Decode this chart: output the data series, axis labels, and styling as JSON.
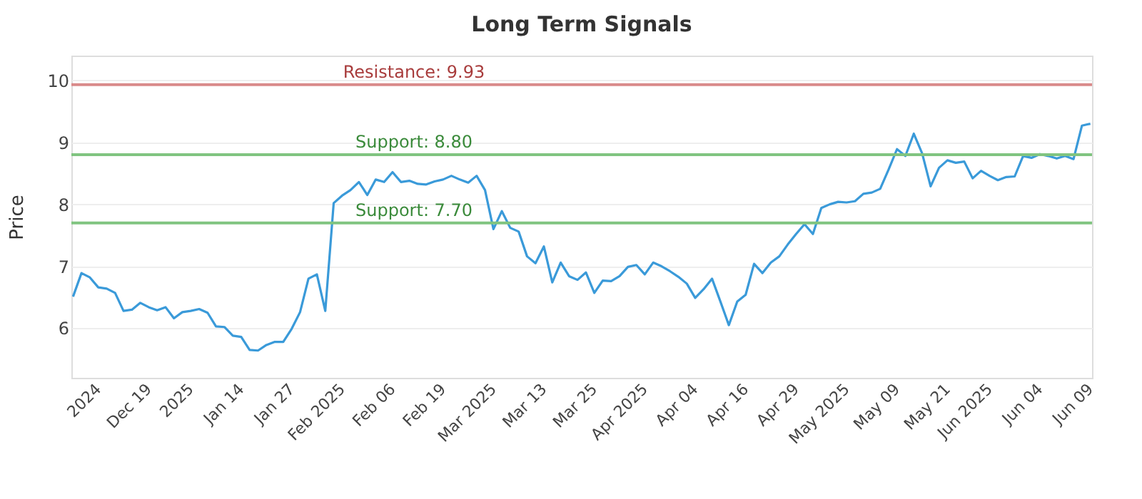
{
  "chart_data": {
    "type": "line",
    "title": "Long Term Signals",
    "ylabel": "Price",
    "categories": [
      null,
      null,
      null,
      "2024",
      null,
      null,
      null,
      null,
      null,
      "Dec 19",
      null,
      null,
      null,
      null,
      "2025",
      null,
      null,
      null,
      null,
      null,
      "Jan 14",
      null,
      null,
      null,
      null,
      null,
      "Jan 27",
      null,
      null,
      null,
      null,
      null,
      "Feb 2025",
      null,
      null,
      null,
      null,
      null,
      "Feb 06",
      null,
      null,
      null,
      null,
      null,
      "Feb 19",
      null,
      null,
      null,
      null,
      null,
      "Mar 2025",
      null,
      null,
      null,
      null,
      null,
      "Mar 13",
      null,
      null,
      null,
      null,
      null,
      "Mar 25",
      null,
      null,
      null,
      null,
      null,
      "Apr 2025",
      null,
      null,
      null,
      null,
      null,
      "Apr 04",
      null,
      null,
      null,
      null,
      null,
      "Apr 16",
      null,
      null,
      null,
      null,
      null,
      "Apr 29",
      null,
      null,
      null,
      null,
      null,
      "May 2025",
      null,
      null,
      null,
      null,
      null,
      "May 09",
      null,
      null,
      null,
      null,
      null,
      "May 21",
      null,
      null,
      null,
      null,
      "Jun 2025",
      null,
      null,
      null,
      null,
      null,
      "Jun 04",
      null,
      null,
      null,
      null,
      null,
      "Jun 09"
    ],
    "series": [
      {
        "color": "#3a9ad9",
        "values": [
          6.51,
          6.89,
          6.82,
          6.66,
          6.64,
          6.57,
          6.28,
          6.3,
          6.41,
          6.34,
          6.29,
          6.34,
          6.16,
          6.26,
          6.28,
          6.31,
          6.25,
          6.03,
          6.02,
          5.88,
          5.86,
          5.65,
          5.64,
          5.73,
          5.78,
          5.78,
          5.99,
          6.26,
          6.8,
          6.87,
          6.28,
          8.02,
          8.14,
          8.23,
          8.36,
          8.15,
          8.4,
          8.36,
          8.52,
          8.36,
          8.38,
          8.33,
          8.32,
          8.37,
          8.4,
          8.46,
          8.4,
          8.35,
          8.46,
          8.23,
          7.6,
          7.89,
          7.62,
          7.56,
          7.16,
          7.05,
          7.32,
          6.74,
          7.06,
          6.84,
          6.78,
          6.9,
          6.57,
          6.77,
          6.76,
          6.84,
          6.99,
          7.02,
          6.87,
          7.06,
          7.0,
          6.92,
          6.83,
          6.72,
          6.49,
          6.63,
          6.8,
          6.43,
          6.05,
          6.43,
          6.54,
          7.04,
          6.89,
          7.06,
          7.16,
          7.35,
          7.52,
          7.68,
          7.52,
          7.94,
          8.0,
          8.04,
          8.03,
          8.05,
          8.17,
          8.19,
          8.25,
          8.56,
          8.89,
          8.78,
          9.14,
          8.82,
          8.29,
          8.59,
          8.71,
          8.67,
          8.69,
          8.42,
          8.54,
          8.46,
          8.39,
          8.44,
          8.45,
          8.78,
          8.75,
          8.81,
          8.78,
          8.74,
          8.78,
          8.73,
          9.27,
          9.3
        ]
      }
    ],
    "ylim": [
      5.2,
      10.4
    ],
    "yticks": [
      6,
      7,
      8,
      9,
      10
    ],
    "grid": "y",
    "legend": false,
    "line_style": "solid",
    "marker": "none",
    "ref_lines": [
      {
        "axis": "y",
        "value": 9.93,
        "label": "Resistance: 9.93",
        "color": "#d98a8a"
      },
      {
        "axis": "y",
        "value": 8.8,
        "label": "Support: 8.80",
        "color": "#80c480"
      },
      {
        "axis": "y",
        "value": 7.7,
        "label": "Support: 7.70",
        "color": "#80c480"
      }
    ]
  }
}
